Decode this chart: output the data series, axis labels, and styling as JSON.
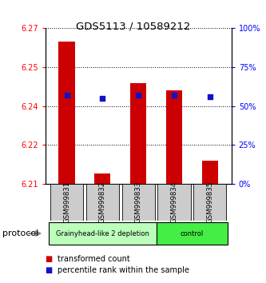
{
  "title": "GDS5113 / 10589212",
  "samples": [
    "GSM999831",
    "GSM999832",
    "GSM999833",
    "GSM999834",
    "GSM999835"
  ],
  "bar_tops": [
    6.265,
    6.214,
    6.249,
    6.246,
    6.219
  ],
  "bar_bottom": 6.21,
  "percentile_right": [
    57,
    55,
    57,
    57,
    56
  ],
  "ylim_left": [
    6.21,
    6.27
  ],
  "ylim_right": [
    0,
    100
  ],
  "yticks_left": [
    6.21,
    6.225,
    6.24,
    6.255,
    6.27
  ],
  "yticks_right": [
    0,
    25,
    50,
    75,
    100
  ],
  "bar_color": "#cc0000",
  "percentile_color": "#1111cc",
  "groups": [
    {
      "label": "Grainyhead-like 2 depletion",
      "start": 0,
      "end": 3,
      "color": "#bbffbb"
    },
    {
      "label": "control",
      "start": 3,
      "end": 5,
      "color": "#44ee44"
    }
  ],
  "protocol_label": "protocol",
  "legend_red": "transformed count",
  "legend_blue": "percentile rank within the sample",
  "tick_bg_color": "#cccccc"
}
